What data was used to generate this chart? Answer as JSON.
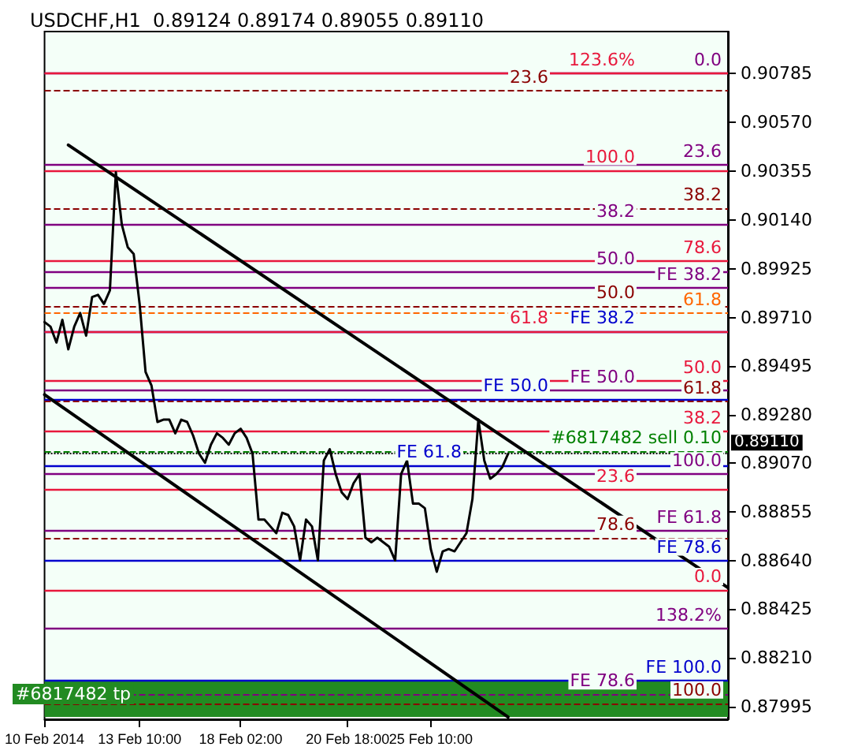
{
  "chart_data": {
    "type": "line",
    "title": "USDCHF,H1  0.89124 0.89174 0.89055 0.89110",
    "marker": "none",
    "categories": [
      "10 Feb 2014",
      null,
      null,
      null,
      null,
      null,
      null,
      null,
      null,
      null,
      null,
      null,
      null,
      null,
      null,
      null,
      "13 Feb 10:00",
      null,
      null,
      null,
      null,
      null,
      null,
      null,
      null,
      null,
      null,
      null,
      null,
      null,
      null,
      null,
      null,
      "18 Feb 02:00",
      null,
      null,
      null,
      null,
      null,
      null,
      null,
      null,
      null,
      null,
      null,
      null,
      null,
      null,
      null,
      null,
      null,
      "20 Feb 18:00",
      null,
      null,
      null,
      null,
      null,
      null,
      null,
      null,
      null,
      null,
      null,
      null,
      null,
      "25 Feb 10:00",
      null,
      null,
      null,
      null,
      null,
      null,
      null,
      null,
      null,
      null,
      null,
      null,
      null,
      null,
      null,
      null,
      null,
      null,
      null,
      null,
      null,
      null,
      null,
      null,
      null,
      null,
      null,
      null,
      null,
      null,
      null,
      null,
      null,
      null,
      null,
      null,
      null,
      null,
      null,
      null,
      null,
      null,
      null,
      null,
      null,
      null,
      null,
      null,
      null,
      null
    ],
    "ylim": [
      0.8794,
      0.9097
    ],
    "yticks": [
      0.87995,
      {
        "value": 0.8821,
        "label": "0.88210"
      },
      0.88425,
      {
        "value": 0.8864,
        "label": "0.88640"
      },
      0.88855,
      {
        "value": 0.8907,
        "label": "0.89070"
      },
      {
        "value": 0.8928,
        "label": "0.89280"
      },
      0.89495,
      {
        "value": 0.8971,
        "label": "0.89710"
      },
      0.89925,
      {
        "value": 0.9014,
        "label": "0.90140"
      },
      0.90355,
      {
        "value": 0.9057,
        "label": "0.90570"
      },
      0.90785
    ],
    "series": [
      {
        "color": "#000000",
        "line_style": "solid",
        "values": [
          0.8969,
          0.8967,
          0.896,
          0.897,
          0.8957,
          0.8967,
          0.8973,
          0.8963,
          0.898,
          0.8981,
          0.8977,
          0.8983,
          0.9035,
          0.9012,
          0.9002,
          0.8999,
          0.8977,
          0.8947,
          0.8941,
          0.8925,
          0.8926,
          0.8926,
          0.892,
          0.8926,
          0.8925,
          0.8919,
          0.8911,
          0.8907,
          0.8915,
          0.892,
          0.8918,
          0.8915,
          0.892,
          0.8922,
          0.8918,
          0.8911,
          0.8882,
          0.8882,
          0.8879,
          0.8876,
          0.8885,
          0.8884,
          0.8879,
          0.8864,
          0.8882,
          0.8879,
          0.8864,
          0.8908,
          0.8913,
          0.8902,
          0.8894,
          0.8891,
          0.8898,
          0.8902,
          0.8874,
          0.8872,
          0.8874,
          0.8872,
          0.887,
          0.8864,
          0.8902,
          0.8908,
          0.8889,
          0.8889,
          0.8887,
          0.8869,
          0.8859,
          0.8868,
          0.8869,
          0.8868,
          0.8872,
          0.8876,
          0.8891,
          0.8926,
          0.8908,
          0.89,
          0.8902,
          0.8905,
          0.8911,
          null,
          null,
          null,
          null,
          null,
          null,
          null,
          null,
          null,
          null,
          null,
          null,
          null,
          null,
          null,
          null,
          null,
          null,
          null,
          null,
          null,
          null,
          null,
          null,
          null,
          null,
          null,
          null,
          null,
          null,
          null,
          null,
          null,
          null,
          null,
          null,
          null
        ]
      },
      {
        "color": "#000000",
        "line_style": "solid",
        "values": [
          null,
          null,
          null,
          null,
          0.9047,
          null,
          null,
          null,
          null,
          null,
          null,
          null,
          null,
          null,
          null,
          null,
          null,
          null,
          null,
          null,
          null,
          null,
          null,
          null,
          null,
          null,
          null,
          null,
          null,
          null,
          null,
          null,
          null,
          null,
          null,
          null,
          null,
          null,
          null,
          null,
          null,
          null,
          null,
          null,
          null,
          null,
          null,
          null,
          null,
          null,
          null,
          null,
          null,
          null,
          null,
          null,
          null,
          null,
          null,
          null,
          null,
          null,
          null,
          null,
          null,
          null,
          null,
          null,
          null,
          null,
          null,
          null,
          null,
          null,
          null,
          null,
          null,
          null,
          null,
          null,
          null,
          null,
          null,
          null,
          null,
          null,
          null,
          null,
          null,
          null,
          null,
          null,
          null,
          null,
          null,
          null,
          null,
          null,
          null,
          null,
          null,
          null,
          null,
          null,
          null,
          null,
          null,
          null,
          null,
          null,
          null,
          null,
          null,
          null,
          null,
          0.8852
        ]
      },
      {
        "color": "#000000",
        "line_style": "solid",
        "values": [
          0.8937,
          null,
          null,
          null,
          null,
          null,
          null,
          null,
          null,
          null,
          null,
          null,
          null,
          null,
          null,
          null,
          null,
          null,
          null,
          null,
          null,
          null,
          null,
          null,
          null,
          null,
          null,
          null,
          null,
          null,
          null,
          null,
          null,
          null,
          null,
          null,
          null,
          null,
          null,
          null,
          null,
          null,
          null,
          null,
          null,
          null,
          null,
          null,
          null,
          null,
          null,
          null,
          null,
          null,
          null,
          null,
          null,
          null,
          null,
          null,
          null,
          null,
          null,
          null,
          null,
          null,
          null,
          null,
          null,
          null,
          null,
          null,
          null,
          null,
          null,
          null,
          null,
          null,
          0.8795,
          null,
          null,
          null,
          null,
          null,
          null,
          null,
          null,
          null,
          null,
          null,
          null,
          null,
          null,
          null,
          null,
          null,
          null,
          null,
          null,
          null,
          null,
          null,
          null,
          null,
          null,
          null,
          null,
          null,
          null,
          null,
          null,
          null,
          null,
          null,
          null,
          null
        ]
      }
    ],
    "ref_lines": [
      {
        "axis": "y",
        "value": 0.90785,
        "color": "#800080",
        "line_style": "solid"
      },
      {
        "axis": "y",
        "value": 0.90785,
        "color": "#e8183c",
        "line_style": "solid"
      },
      {
        "axis": "y",
        "value": 0.9071,
        "color": "#8b0000",
        "line_style": "dashed"
      },
      {
        "axis": "y",
        "value": 0.90382,
        "color": "#800080",
        "line_style": "solid"
      },
      {
        "axis": "y",
        "value": 0.9036,
        "color": "#e8183c",
        "line_style": "solid"
      },
      {
        "axis": "y",
        "value": 0.9019,
        "color": "#8b0000",
        "line_style": "dashed"
      },
      {
        "axis": "y",
        "value": 0.9012,
        "color": "#800080",
        "line_style": "solid"
      },
      {
        "axis": "y",
        "value": 0.8996,
        "color": "#e8183c",
        "line_style": "solid"
      },
      {
        "axis": "y",
        "value": 0.8991,
        "color": "#800080",
        "line_style": "solid"
      },
      {
        "axis": "y",
        "value": 0.8984,
        "color": "#800080",
        "line_style": "solid"
      },
      {
        "axis": "y",
        "value": 0.8976,
        "color": "#8b0000",
        "line_style": "dashed"
      },
      {
        "axis": "y",
        "value": 0.8973,
        "color": "#ff6600",
        "line_style": "dashed"
      },
      {
        "axis": "y",
        "value": 0.8965,
        "color": "#0000cd",
        "line_style": "solid"
      },
      {
        "axis": "y",
        "value": 0.8965,
        "color": "#e8183c",
        "line_style": "solid"
      },
      {
        "axis": "y",
        "value": 0.8943,
        "color": "#e8183c",
        "line_style": "solid"
      },
      {
        "axis": "y",
        "value": 0.8939,
        "color": "#800080",
        "line_style": "solid"
      },
      {
        "axis": "y",
        "value": 0.8935,
        "color": "#0000cd",
        "line_style": "solid"
      },
      {
        "axis": "y",
        "value": 0.8934,
        "color": "#8b0000",
        "line_style": "dashed"
      },
      {
        "axis": "y",
        "value": 0.8921,
        "color": "#e8183c",
        "line_style": "solid"
      },
      {
        "axis": "y",
        "value": 0.8912,
        "color": "#008000",
        "line_style": "dashed"
      },
      {
        "axis": "y",
        "value": 0.8906,
        "color": "#0000cd",
        "line_style": "solid"
      },
      {
        "axis": "y",
        "value": 0.8902,
        "color": "#800080",
        "line_style": "solid"
      },
      {
        "axis": "y",
        "value": 0.8895,
        "color": "#e8183c",
        "line_style": "solid"
      },
      {
        "axis": "y",
        "value": 0.8877,
        "color": "#800080",
        "line_style": "solid"
      },
      {
        "axis": "y",
        "value": 0.8874,
        "color": "#8b0000",
        "line_style": "dashed"
      },
      {
        "axis": "y",
        "value": 0.8864,
        "color": "#0000cd",
        "line_style": "solid"
      },
      {
        "axis": "y",
        "value": 0.8851,
        "color": "#e8183c",
        "line_style": "solid"
      },
      {
        "axis": "y",
        "value": 0.8834,
        "color": "#800080",
        "line_style": "solid"
      },
      {
        "axis": "y",
        "value": 0.8811,
        "color": "#0000cd",
        "line_style": "solid"
      },
      {
        "axis": "y",
        "value": 0.8805,
        "color": "#800080",
        "line_style": "dashed"
      },
      {
        "axis": "y",
        "value": 0.8801,
        "color": "#8b0000",
        "line_style": "dashed"
      },
      {
        "axis": "y",
        "value": 0.8911,
        "label": "0.89110",
        "color": "#000000",
        "line_style": "dotted"
      }
    ],
    "bands": [
      {
        "axis": "y",
        "from": 0.8795,
        "to": 0.8811,
        "label": "#6817482 tp",
        "color": "#228b22"
      }
    ],
    "annotations": [
      "0.0",
      "123.6%",
      "23.6",
      "23.6",
      "100.0",
      "38.2",
      "38.2",
      "78.6",
      "50.0",
      "FE 38.2",
      "50.0",
      "61.8",
      "FE 38.2",
      "61.8",
      "50.0",
      "FE 50.0",
      "FE 50.0",
      "61.8",
      "38.2",
      "#6817482 sell 0.10",
      "FE 61.8",
      "100.0",
      "23.6",
      "FE 61.8",
      "78.6",
      "FE 78.6",
      "0.0",
      "138.2%",
      "FE 100.0",
      "FE 78.6",
      "100.0"
    ]
  }
}
